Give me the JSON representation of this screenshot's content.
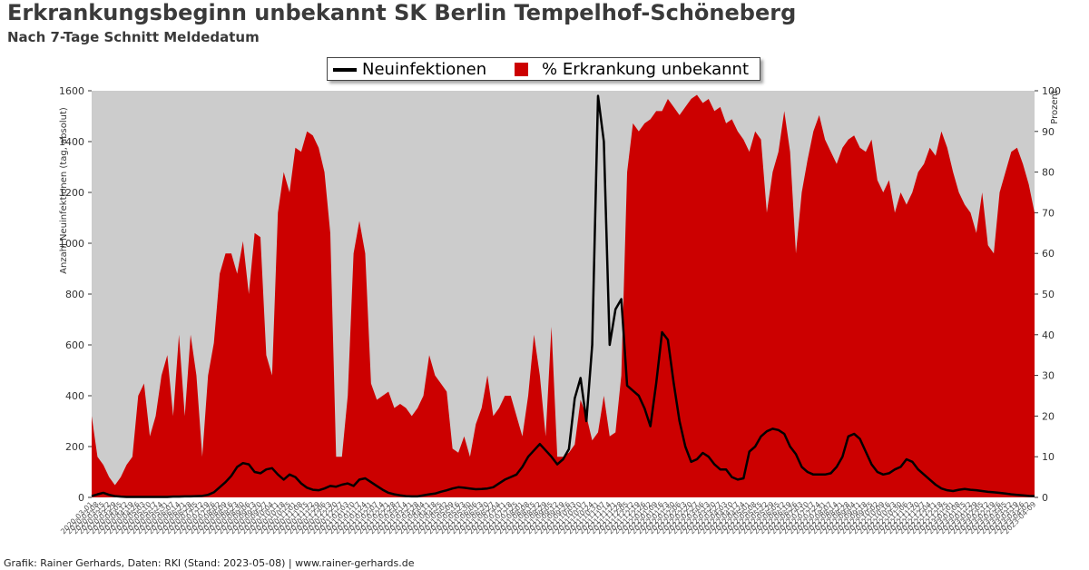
{
  "header": {
    "title": "Erkrankungsbeginn unbekannt SK Berlin Tempelhof-Schöneberg",
    "subtitle": "Nach 7-Tage Schnitt Meldedatum"
  },
  "footer": {
    "credit": "Grafik: Rainer Gerhards, Daten: RKI (Stand: 2023-05-08) | www.rainer-gerhards.de"
  },
  "colors": {
    "plot_background": "#cccccc",
    "area": "#cc0000",
    "line": "#000000"
  },
  "chart_data": {
    "type": "area",
    "title": "Erkrankungsbeginn unbekannt SK Berlin Tempelhof-Schöneberg",
    "subtitle": "Nach 7-Tage Schnitt Meldedatum",
    "ylabel_left": "Anzahl Neuinfektionen (tag, absolut)",
    "ylabel_right": "Prozent",
    "ylim_left": [
      0,
      1600
    ],
    "ylim_right": [
      0,
      100
    ],
    "yticks_left": [
      0,
      200,
      400,
      600,
      800,
      1000,
      1200,
      1400,
      1600
    ],
    "yticks_right": [
      0,
      10,
      20,
      30,
      40,
      50,
      60,
      70,
      80,
      90,
      100
    ],
    "x_start": "2020-03-01",
    "x_end": "2023-05-08",
    "x_step_days": 7,
    "grid": false,
    "legend_position": "top-center",
    "series": [
      {
        "name": "Neuinfektionen",
        "type": "line",
        "axis": "left",
        "color": "#000000",
        "values": [
          5,
          12,
          18,
          10,
          5,
          3,
          2,
          2,
          2,
          2,
          2,
          2,
          2,
          2,
          3,
          3,
          4,
          4,
          5,
          6,
          10,
          20,
          40,
          60,
          85,
          120,
          135,
          130,
          100,
          95,
          110,
          115,
          90,
          70,
          90,
          80,
          55,
          38,
          30,
          28,
          35,
          45,
          42,
          50,
          55,
          45,
          70,
          75,
          60,
          45,
          30,
          18,
          12,
          8,
          5,
          4,
          4,
          8,
          12,
          15,
          22,
          28,
          35,
          40,
          38,
          35,
          32,
          33,
          35,
          40,
          55,
          70,
          80,
          90,
          120,
          160,
          185,
          210,
          185,
          160,
          130,
          150,
          190,
          390,
          470,
          300,
          600,
          1580,
          1400,
          600,
          740,
          780,
          440,
          420,
          400,
          350,
          280,
          450,
          650,
          620,
          450,
          300,
          200,
          140,
          150,
          175,
          160,
          130,
          110,
          110,
          80,
          70,
          75,
          180,
          200,
          240,
          260,
          270,
          265,
          250,
          200,
          170,
          120,
          100,
          90,
          90,
          90,
          95,
          120,
          160,
          240,
          250,
          230,
          180,
          130,
          100,
          90,
          95,
          110,
          120,
          150,
          140,
          110,
          90,
          70,
          50,
          35,
          28,
          25,
          30,
          33,
          30,
          28,
          25,
          22,
          20,
          18,
          15,
          12,
          10,
          8,
          6,
          5
        ]
      },
      {
        "name": "% Erkrankung unbekannt",
        "type": "area",
        "axis": "right",
        "color": "#cc0000",
        "values": [
          20,
          10,
          8,
          5,
          3,
          5,
          8,
          10,
          25,
          28,
          15,
          20,
          30,
          35,
          20,
          40,
          20,
          40,
          30,
          10,
          30,
          38,
          55,
          60,
          60,
          55,
          63,
          50,
          65,
          64,
          35,
          30,
          70,
          80,
          75,
          86,
          85,
          90,
          89,
          86,
          80,
          65,
          10,
          10,
          25,
          60,
          68,
          60,
          28,
          24,
          25,
          26,
          22,
          23,
          22,
          20,
          22,
          25,
          35,
          30,
          28,
          26,
          12,
          11,
          15,
          10,
          18,
          22,
          30,
          20,
          22,
          25,
          25,
          20,
          15,
          25,
          40,
          30,
          15,
          42,
          10,
          10,
          11,
          13,
          24,
          20,
          14,
          16,
          25,
          15,
          16,
          30,
          80,
          92,
          90,
          92,
          93,
          95,
          95,
          98,
          96,
          94,
          96,
          98,
          99,
          97,
          98,
          95,
          96,
          92,
          93,
          90,
          88,
          85,
          90,
          88,
          70,
          80,
          85,
          95,
          85,
          60,
          75,
          83,
          90,
          94,
          88,
          85,
          82,
          86,
          88,
          89,
          86,
          85,
          88,
          78,
          75,
          78,
          70,
          75,
          72,
          75,
          80,
          82,
          86,
          84,
          90,
          86,
          80,
          75,
          72,
          70,
          65,
          75,
          62,
          60,
          75,
          80,
          85,
          86,
          82,
          77,
          70
        ]
      }
    ]
  }
}
